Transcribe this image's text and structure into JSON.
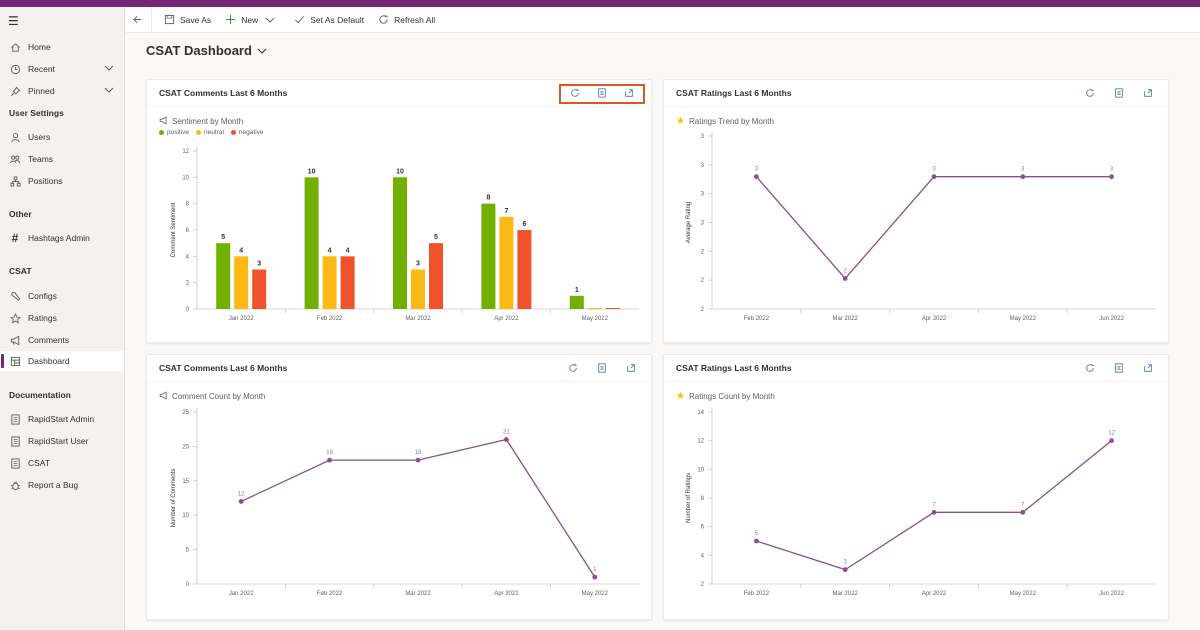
{
  "nav": {
    "main": [
      {
        "label": "Home",
        "icon": "home-icon"
      },
      {
        "label": "Recent",
        "icon": "clock-icon"
      },
      {
        "label": "Pinned",
        "icon": "pin-icon"
      }
    ],
    "sections": [
      {
        "title": "User Settings",
        "items": [
          {
            "label": "Users",
            "icon": "user-icon"
          },
          {
            "label": "Teams",
            "icon": "team-icon"
          },
          {
            "label": "Positions",
            "icon": "hierarchy-icon"
          }
        ]
      },
      {
        "title": "Other",
        "items": [
          {
            "label": "Hashtags Admin",
            "icon": "hashtag-icon"
          }
        ]
      },
      {
        "title": "CSAT",
        "items": [
          {
            "label": "Configs",
            "icon": "wrench-icon"
          },
          {
            "label": "Ratings",
            "icon": "star-icon"
          },
          {
            "label": "Comments",
            "icon": "megaphone-icon"
          },
          {
            "label": "Dashboard",
            "icon": "dashboard-icon"
          }
        ]
      },
      {
        "title": "Documentation",
        "items": [
          {
            "label": "RapidStart Admin",
            "icon": "document-icon"
          },
          {
            "label": "RapidStart User",
            "icon": "document-icon"
          },
          {
            "label": "CSAT",
            "icon": "document-icon"
          },
          {
            "label": "Report a Bug",
            "icon": "bug-icon"
          }
        ]
      }
    ]
  },
  "commands": {
    "save_as": "Save As",
    "new": "New",
    "set_default": "Set As Default",
    "refresh": "Refresh All"
  },
  "page_title": "CSAT Dashboard",
  "colors": {
    "accent": "#742774",
    "line": "#8e4d8e",
    "positive": "#71b000",
    "neutral": "#fdb913",
    "negative": "#f0522b",
    "highlight": "#d9572b"
  },
  "cards": [
    {
      "title": "CSAT Comments Last 6 Months"
    },
    {
      "title": "CSAT Ratings Last 6 Months"
    },
    {
      "title": "CSAT Comments Last 6 Months"
    },
    {
      "title": "CSAT Ratings Last 6 Months"
    }
  ],
  "chart_data": [
    {
      "type": "bar",
      "title": "Sentiment by Month",
      "ylabel": "Comment Sentiment",
      "categories": [
        "Jan 2022",
        "Feb 2022",
        "Mar 2022",
        "Apr 2022",
        "May 2022"
      ],
      "series": [
        {
          "name": "positive",
          "values": [
            5,
            10,
            10,
            8,
            1
          ]
        },
        {
          "name": "neutral",
          "values": [
            4,
            4,
            3,
            7,
            0
          ]
        },
        {
          "name": "negative",
          "values": [
            3,
            4,
            5,
            6,
            0
          ]
        }
      ],
      "yticks": [
        0,
        2,
        4,
        6,
        8,
        10,
        12
      ],
      "ylim": [
        0,
        12
      ],
      "legend": "top-left",
      "grid": false
    },
    {
      "type": "line",
      "title": "Ratings Trend by Month",
      "ylabel": "Average Rating",
      "categories": [
        "Feb 2022",
        "Mar 2022",
        "Apr 2022",
        "May 2022",
        "Jun 2022"
      ],
      "values": [
        3,
        2,
        3,
        3,
        3
      ],
      "data_labels": [
        "3",
        "2",
        "3",
        "3",
        "3"
      ],
      "ytick_labels": [
        "2",
        "2",
        "2",
        "3",
        "3",
        "3",
        "3"
      ],
      "ylim": [
        1.7,
        3.4
      ],
      "grid": false
    },
    {
      "type": "line",
      "title": "Comment Count by Month",
      "ylabel": "Number of Comments",
      "categories": [
        "Jan 2022",
        "Feb 2022",
        "Mar 2022",
        "Apr 2022",
        "May 2022"
      ],
      "values": [
        12,
        18,
        18,
        21,
        1
      ],
      "yticks": [
        0,
        5,
        10,
        15,
        20,
        25
      ],
      "ylim": [
        0,
        25
      ],
      "grid": false
    },
    {
      "type": "line",
      "title": "Ratings Count by Month",
      "ylabel": "Number of Ratings",
      "categories": [
        "Feb 2022",
        "Mar 2022",
        "Apr 2022",
        "May 2022",
        "Jun 2022"
      ],
      "values": [
        5,
        3,
        7,
        7,
        12
      ],
      "yticks": [
        2,
        4,
        6,
        8,
        10,
        12,
        14
      ],
      "ylim": [
        2,
        14
      ],
      "grid": false
    }
  ]
}
